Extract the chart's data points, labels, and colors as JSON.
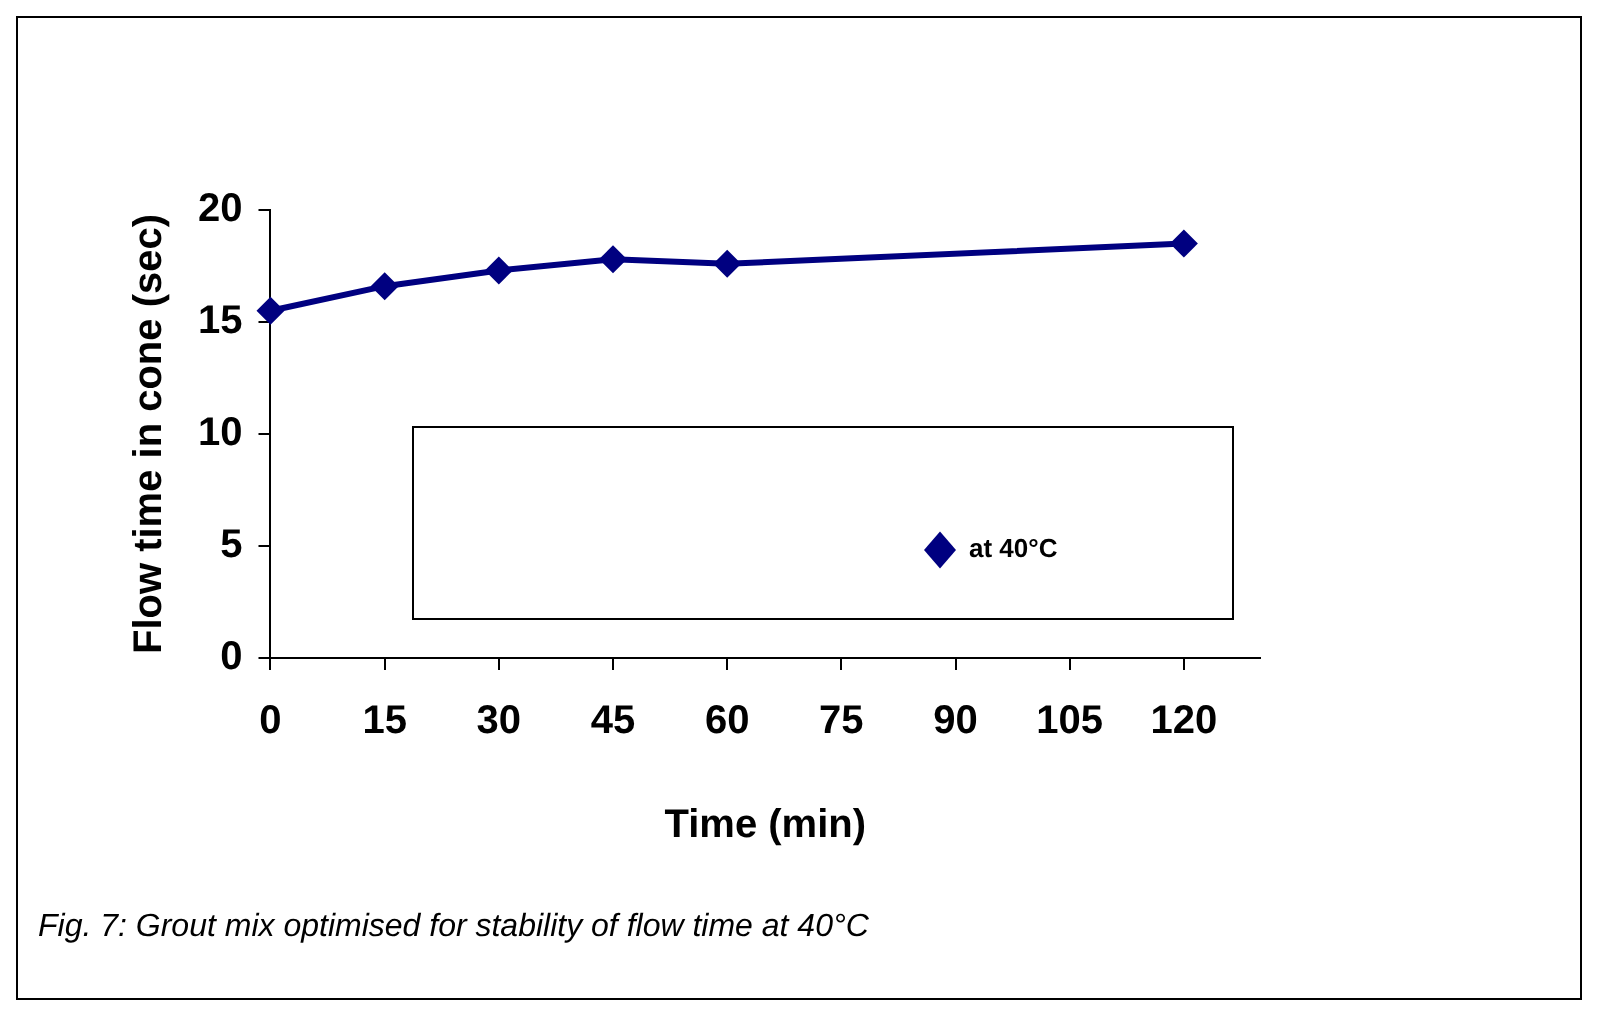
{
  "chart_data": {
    "type": "line",
    "xlabel": "Time (min)",
    "ylabel": "Flow time in cone (sec)",
    "x": [
      0,
      15,
      30,
      45,
      60,
      120
    ],
    "series": [
      {
        "name": "at 40°C",
        "color": "#000080",
        "values": [
          15.5,
          16.6,
          17.3,
          17.8,
          17.6,
          18.5
        ]
      }
    ],
    "xlim": [
      0,
      130
    ],
    "xticks": [
      0,
      15,
      30,
      45,
      60,
      75,
      90,
      105,
      120
    ],
    "ylim": [
      0,
      20
    ],
    "yticks": [
      0,
      5,
      10,
      15,
      20
    ],
    "grid": false,
    "legend": "bottom right",
    "marker": "diamond",
    "line_style": "solid",
    "annotations": [
      "Fig. 7: Grout mix optimised for stability of flow time at 40°C"
    ]
  }
}
